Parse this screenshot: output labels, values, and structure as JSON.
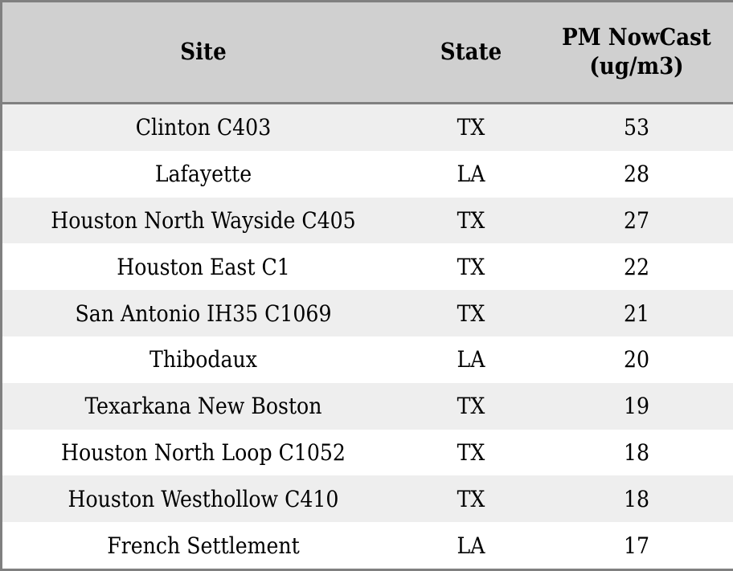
{
  "table": {
    "columns": [
      "Site",
      "State",
      "PM NowCast (ug/m3)"
    ],
    "rows": [
      [
        "Clinton C403",
        "TX",
        "53"
      ],
      [
        "Lafayette",
        "LA",
        "28"
      ],
      [
        "Houston North Wayside C405",
        "TX",
        "27"
      ],
      [
        "Houston East C1",
        "TX",
        "22"
      ],
      [
        "San Antonio IH35 C1069",
        "TX",
        "21"
      ],
      [
        "Thibodaux",
        "LA",
        "20"
      ],
      [
        "Texarkana New Boston",
        "TX",
        "19"
      ],
      [
        "Houston North Loop C1052",
        "TX",
        "18"
      ],
      [
        "Houston Westhollow C410",
        "TX",
        "18"
      ],
      [
        "French Settlement",
        "LA",
        "17"
      ]
    ]
  },
  "chart_data": {
    "type": "table",
    "title": "",
    "columns": [
      "Site",
      "State",
      "PM NowCast (ug/m3)"
    ],
    "rows": [
      {
        "site": "Clinton C403",
        "state": "TX",
        "pm_nowcast_ugm3": 53
      },
      {
        "site": "Lafayette",
        "state": "LA",
        "pm_nowcast_ugm3": 28
      },
      {
        "site": "Houston North Wayside C405",
        "state": "TX",
        "pm_nowcast_ugm3": 27
      },
      {
        "site": "Houston East C1",
        "state": "TX",
        "pm_nowcast_ugm3": 22
      },
      {
        "site": "San Antonio IH35 C1069",
        "state": "TX",
        "pm_nowcast_ugm3": 21
      },
      {
        "site": "Thibodaux",
        "state": "LA",
        "pm_nowcast_ugm3": 20
      },
      {
        "site": "Texarkana New Boston",
        "state": "TX",
        "pm_nowcast_ugm3": 19
      },
      {
        "site": "Houston North Loop C1052",
        "state": "TX",
        "pm_nowcast_ugm3": 18
      },
      {
        "site": "Houston Westhollow C410",
        "state": "TX",
        "pm_nowcast_ugm3": 18
      },
      {
        "site": "French Settlement",
        "state": "LA",
        "pm_nowcast_ugm3": 17
      }
    ],
    "layout_hints": {
      "zebra_striping": true,
      "first_data_row_shaded": true,
      "alignment": "center"
    }
  },
  "colors": {
    "border": "#808080",
    "header_bg": "#d0d0d0",
    "row_odd_bg": "#eeeeee",
    "row_even_bg": "#ffffff",
    "text": "#000000"
  }
}
